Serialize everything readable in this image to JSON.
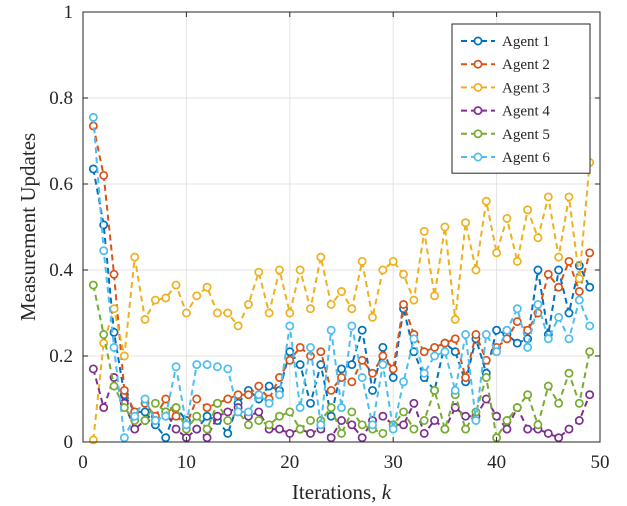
{
  "chart_data": {
    "type": "line",
    "xlabel": "Iterations, ",
    "xlabel_var": "k",
    "ylabel": "Measurement Updates",
    "xlim": [
      0,
      50
    ],
    "ylim": [
      0,
      1
    ],
    "x_ticks": [
      "0",
      "10",
      "20",
      "30",
      "40",
      "50"
    ],
    "y_ticks": [
      "0",
      "0.2",
      "0.4",
      "0.6",
      "0.8",
      "1"
    ],
    "grid": true,
    "legend_position": "top-right",
    "line_style": "dashed",
    "marker": "circle",
    "x": [
      1,
      2,
      3,
      4,
      5,
      6,
      7,
      8,
      9,
      10,
      11,
      12,
      13,
      14,
      15,
      16,
      17,
      18,
      19,
      20,
      21,
      22,
      23,
      24,
      25,
      26,
      27,
      28,
      29,
      30,
      31,
      32,
      33,
      34,
      35,
      36,
      37,
      38,
      39,
      40,
      41,
      42,
      43,
      44,
      45,
      46,
      47,
      48,
      49
    ],
    "series": [
      {
        "name": "Agent 1",
        "color": "#0072BD",
        "values": [
          0.635,
          0.505,
          0.255,
          0.11,
          0.07,
          0.07,
          0.04,
          0.01,
          0.08,
          0.05,
          0.03,
          0.06,
          0.05,
          0.02,
          0.09,
          0.12,
          0.1,
          0.13,
          0.12,
          0.21,
          0.18,
          0.09,
          0.18,
          0.06,
          0.17,
          0.18,
          0.26,
          0.12,
          0.22,
          0.15,
          0.31,
          0.21,
          0.15,
          0.12,
          0.23,
          0.21,
          0.14,
          0.24,
          0.16,
          0.26,
          0.25,
          0.23,
          0.24,
          0.4,
          0.25,
          0.4,
          0.3,
          0.41,
          0.36
        ]
      },
      {
        "name": "Agent 2",
        "color": "#D95319",
        "values": [
          0.735,
          0.62,
          0.39,
          0.12,
          0.07,
          0.09,
          0.06,
          0.1,
          0.06,
          0.04,
          0.1,
          0.08,
          0.09,
          0.1,
          0.11,
          0.11,
          0.13,
          0.1,
          0.15,
          0.19,
          0.22,
          0.2,
          0.21,
          0.12,
          0.15,
          0.14,
          0.19,
          0.16,
          0.2,
          0.17,
          0.32,
          0.25,
          0.21,
          0.22,
          0.23,
          0.24,
          0.15,
          0.25,
          0.19,
          0.22,
          0.24,
          0.28,
          0.26,
          0.3,
          0.39,
          0.36,
          0.42,
          0.35,
          0.44
        ]
      },
      {
        "name": "Agent 3",
        "color": "#EDB120",
        "values": [
          0.005,
          0.23,
          0.31,
          0.2,
          0.43,
          0.285,
          0.33,
          0.335,
          0.365,
          0.3,
          0.34,
          0.36,
          0.3,
          0.3,
          0.27,
          0.32,
          0.395,
          0.3,
          0.4,
          0.3,
          0.4,
          0.31,
          0.43,
          0.32,
          0.35,
          0.31,
          0.42,
          0.29,
          0.4,
          0.42,
          0.39,
          0.33,
          0.49,
          0.34,
          0.5,
          0.285,
          0.51,
          0.4,
          0.56,
          0.44,
          0.52,
          0.42,
          0.54,
          0.475,
          0.57,
          0.43,
          0.57,
          0.38,
          0.65
        ]
      },
      {
        "name": "Agent 4",
        "color": "#7E2F8E",
        "values": [
          0.17,
          0.08,
          0.15,
          0.09,
          0.03,
          0.05,
          0.05,
          0.07,
          0.03,
          0.01,
          0.03,
          0.01,
          0.06,
          0.07,
          0.08,
          0.06,
          0.07,
          0.03,
          0.03,
          0.02,
          0.03,
          0.02,
          0.03,
          0.01,
          0.05,
          0.04,
          0.01,
          0.05,
          0.06,
          0.04,
          0.04,
          0.09,
          0.02,
          0.05,
          0.03,
          0.08,
          0.06,
          0.06,
          0.1,
          0.06,
          0.03,
          0.08,
          0.03,
          0.03,
          0.02,
          0.01,
          0.03,
          0.05,
          0.11
        ]
      },
      {
        "name": "Agent 5",
        "color": "#77AC30",
        "values": [
          0.365,
          0.25,
          0.13,
          0.08,
          0.05,
          0.05,
          0.09,
          0.07,
          0.08,
          0.03,
          0.06,
          0.03,
          0.09,
          0.05,
          0.07,
          0.04,
          0.05,
          0.04,
          0.06,
          0.07,
          0.03,
          0.05,
          0.05,
          0.08,
          0.02,
          0.07,
          0.04,
          0.03,
          0.02,
          0.04,
          0.07,
          0.03,
          0.05,
          0.12,
          0.03,
          0.11,
          0.03,
          0.07,
          0.15,
          0.01,
          0.05,
          0.08,
          0.11,
          0.04,
          0.13,
          0.09,
          0.16,
          0.09,
          0.21
        ]
      },
      {
        "name": "Agent 6",
        "color": "#4DBEEE",
        "values": [
          0.755,
          0.445,
          0.22,
          0.01,
          0.06,
          0.1,
          0.05,
          0.06,
          0.175,
          0.04,
          0.18,
          0.18,
          0.175,
          0.17,
          0.07,
          0.07,
          0.11,
          0.09,
          0.11,
          0.27,
          0.08,
          0.22,
          0.04,
          0.26,
          0.08,
          0.27,
          0.15,
          0.04,
          0.18,
          0.03,
          0.14,
          0.24,
          0.16,
          0.2,
          0.21,
          0.12,
          0.25,
          0.05,
          0.25,
          0.21,
          0.26,
          0.31,
          0.22,
          0.32,
          0.24,
          0.29,
          0.24,
          0.33,
          0.27
        ]
      }
    ]
  }
}
